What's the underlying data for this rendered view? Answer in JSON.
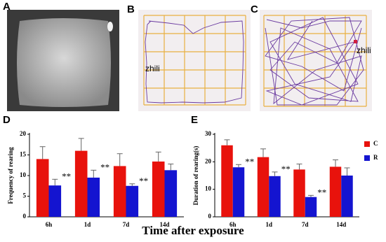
{
  "panels": [
    {
      "letter": "A"
    },
    {
      "letter": "B",
      "annotation": "zhili"
    },
    {
      "letter": "C",
      "annotation": "zhili"
    },
    {
      "letter": "D"
    },
    {
      "letter": "E"
    }
  ],
  "xlabel": "Time after exposure",
  "chart_data": [
    {
      "type": "bar",
      "ylabel": "Frequency of rearing",
      "categories": [
        "6h",
        "1d",
        "7d",
        "14d"
      ],
      "ylim": [
        0,
        20
      ],
      "yticks": [
        0,
        5,
        10,
        15,
        20
      ],
      "series": [
        {
          "color": "#e8120c",
          "values": [
            14,
            16,
            12.3,
            13.4
          ],
          "errors": [
            3,
            3,
            3,
            2.3
          ]
        },
        {
          "color": "#1414d0",
          "values": [
            7.6,
            9.5,
            7.5,
            11.3
          ],
          "errors": [
            1.5,
            1.8,
            0.5,
            1.5
          ],
          "significance": [
            "**",
            "**",
            "**",
            null
          ]
        }
      ]
    },
    {
      "type": "bar",
      "ylabel": "Duration of rearing(s)",
      "categories": [
        "6h",
        "1d",
        "7d",
        "14d"
      ],
      "ylim": [
        0,
        30
      ],
      "yticks": [
        0,
        10,
        20,
        30
      ],
      "legend": "right",
      "series": [
        {
          "name": "C",
          "color": "#e8120c",
          "values": [
            26,
            21.7,
            17.2,
            18.2
          ],
          "errors": [
            2,
            3,
            2,
            2.5
          ]
        },
        {
          "name": "R",
          "color": "#1414d0",
          "values": [
            18,
            14.8,
            7.2,
            15
          ],
          "errors": [
            1,
            1.5,
            0.6,
            2.8
          ],
          "significance": [
            "**",
            "**",
            "**",
            null
          ]
        }
      ]
    }
  ]
}
